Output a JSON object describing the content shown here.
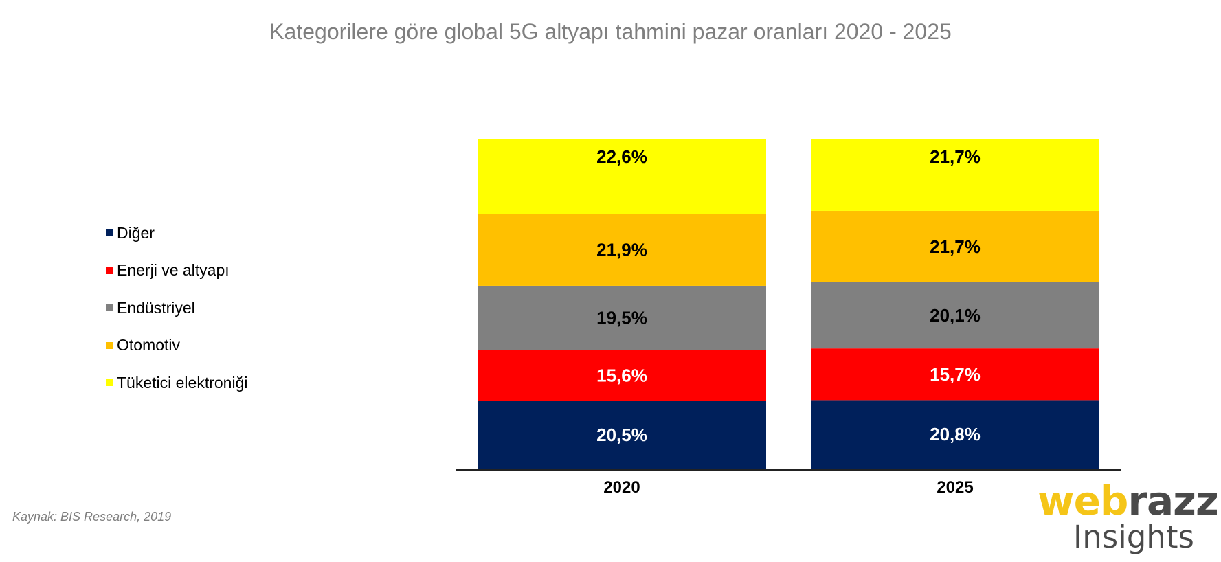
{
  "colors": {
    "title": "#7f7f7f",
    "source": "#7f7f7f",
    "axis": "#222222",
    "logo_yellow": "#f5c518",
    "logo_gray": "#4a4a4a"
  },
  "source": "Kaynak: BIS Research, 2019",
  "logo": {
    "part1": "web",
    "part2": "razzi",
    "part3": "Insights"
  },
  "chart_data": {
    "type": "bar",
    "stacked": true,
    "title": "Kategorilere göre global 5G altyapı tahmini pazar oranları 2020 - 2025",
    "categories": [
      "2020",
      "2025"
    ],
    "series": [
      {
        "name": "Diğer",
        "values": [
          20.5,
          20.8
        ],
        "labels": [
          "20,5%",
          "20,8%"
        ],
        "color": "#00205b",
        "label_color": "#ffffff"
      },
      {
        "name": "Enerji ve altyapı",
        "values": [
          15.6,
          15.7
        ],
        "labels": [
          "15,6%",
          "15,7%"
        ],
        "color": "#ff0000",
        "label_color": "#ffffff"
      },
      {
        "name": "Endüstriyel",
        "values": [
          19.5,
          20.1
        ],
        "labels": [
          "19,5%",
          "20,1%"
        ],
        "color": "#808080",
        "label_color": "#000000"
      },
      {
        "name": "Otomotiv",
        "values": [
          21.9,
          21.7
        ],
        "labels": [
          "21,9%",
          "21,7%"
        ],
        "color": "#ffc000",
        "label_color": "#000000"
      },
      {
        "name": "Tüketici elektroniği",
        "values": [
          22.6,
          21.7
        ],
        "labels": [
          "22,6%",
          "21,7%"
        ],
        "color": "#ffff00",
        "label_color": "#000000"
      }
    ],
    "legend_position": "left",
    "grid": false
  }
}
